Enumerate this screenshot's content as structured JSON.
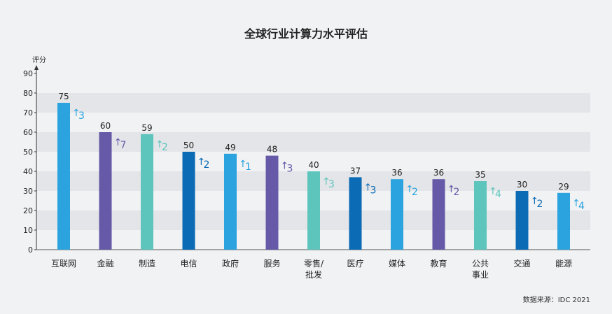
{
  "chart_data": {
    "type": "bar",
    "title": "全球行业计算力水平评估",
    "ylabel": "评分",
    "ylim": [
      0,
      90
    ],
    "yticks": [
      0,
      10,
      20,
      30,
      40,
      50,
      60,
      70,
      80,
      90
    ],
    "grid": "alternating horizontal bands",
    "categories": [
      {
        "lines": [
          "互联网"
        ]
      },
      {
        "lines": [
          "金融"
        ]
      },
      {
        "lines": [
          "制造"
        ]
      },
      {
        "lines": [
          "电信"
        ]
      },
      {
        "lines": [
          "政府"
        ]
      },
      {
        "lines": [
          "服务"
        ]
      },
      {
        "lines": [
          "零售/",
          "批发"
        ]
      },
      {
        "lines": [
          "医疗"
        ]
      },
      {
        "lines": [
          "媒体"
        ]
      },
      {
        "lines": [
          "教育"
        ]
      },
      {
        "lines": [
          "公共",
          "事业"
        ]
      },
      {
        "lines": [
          "交通"
        ]
      },
      {
        "lines": [
          "能源"
        ]
      }
    ],
    "values": [
      75,
      60,
      59,
      50,
      49,
      48,
      40,
      37,
      36,
      36,
      35,
      30,
      29
    ],
    "changes": [
      {
        "arrow": "↑",
        "value": "3"
      },
      {
        "arrow": "↑",
        "value": "7"
      },
      {
        "arrow": "↑",
        "value": "2"
      },
      {
        "arrow": "↑",
        "value": "2"
      },
      {
        "arrow": "↑",
        "value": "1"
      },
      {
        "arrow": "↑",
        "value": "3"
      },
      {
        "arrow": "↑",
        "value": "3"
      },
      {
        "arrow": "↑",
        "value": "3"
      },
      {
        "arrow": "↑",
        "value": "2"
      },
      {
        "arrow": "↑",
        "value": "2"
      },
      {
        "arrow": "↑",
        "value": "4"
      },
      {
        "arrow": "↑",
        "value": "2"
      },
      {
        "arrow": "↑",
        "value": "4"
      }
    ],
    "bar_colors": [
      "#2aa3de",
      "#6559a8",
      "#5ec5bd",
      "#0b6bb5",
      "#2aa3de",
      "#6559a8",
      "#5ec5bd",
      "#0b6bb5",
      "#2aa3de",
      "#6559a8",
      "#5ec5bd",
      "#0b6bb5",
      "#2aa3de"
    ],
    "band_color": "#e4e5e8",
    "source": "数据来源：IDC 2021"
  }
}
